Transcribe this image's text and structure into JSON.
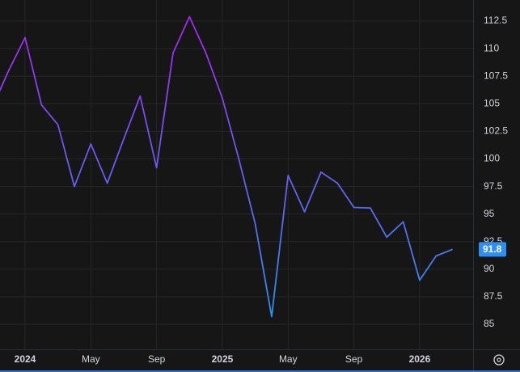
{
  "chart_data": {
    "type": "line",
    "categories": [
      null,
      null,
      "2024",
      null,
      null,
      null,
      "May",
      null,
      null,
      null,
      "Sep",
      null,
      null,
      null,
      "2025",
      null,
      null,
      null,
      "May",
      null,
      null,
      null,
      "Sep",
      null,
      null,
      null,
      "2026",
      null,
      null
    ],
    "values": [
      104.65,
      108.0,
      111.0,
      104.9,
      103.1,
      97.5,
      101.35,
      97.8,
      101.8,
      105.7,
      99.2,
      109.6,
      112.9,
      109.6,
      105.5,
      100.0,
      94.1,
      85.7,
      98.5,
      95.2,
      98.8,
      97.8,
      95.6,
      95.55,
      92.9,
      94.3,
      89.0,
      91.2,
      91.8
    ],
    "gradient": [
      "#a526ee",
      "#2f8ff0"
    ],
    "badge_color": "#2f8ff0",
    "ylim": [
      82.73,
      114.41
    ],
    "yticks": [
      85,
      87.5,
      90,
      92.5,
      95,
      97.5,
      100,
      102.5,
      105,
      107.5,
      110,
      112.5
    ],
    "grid": true
  }
}
